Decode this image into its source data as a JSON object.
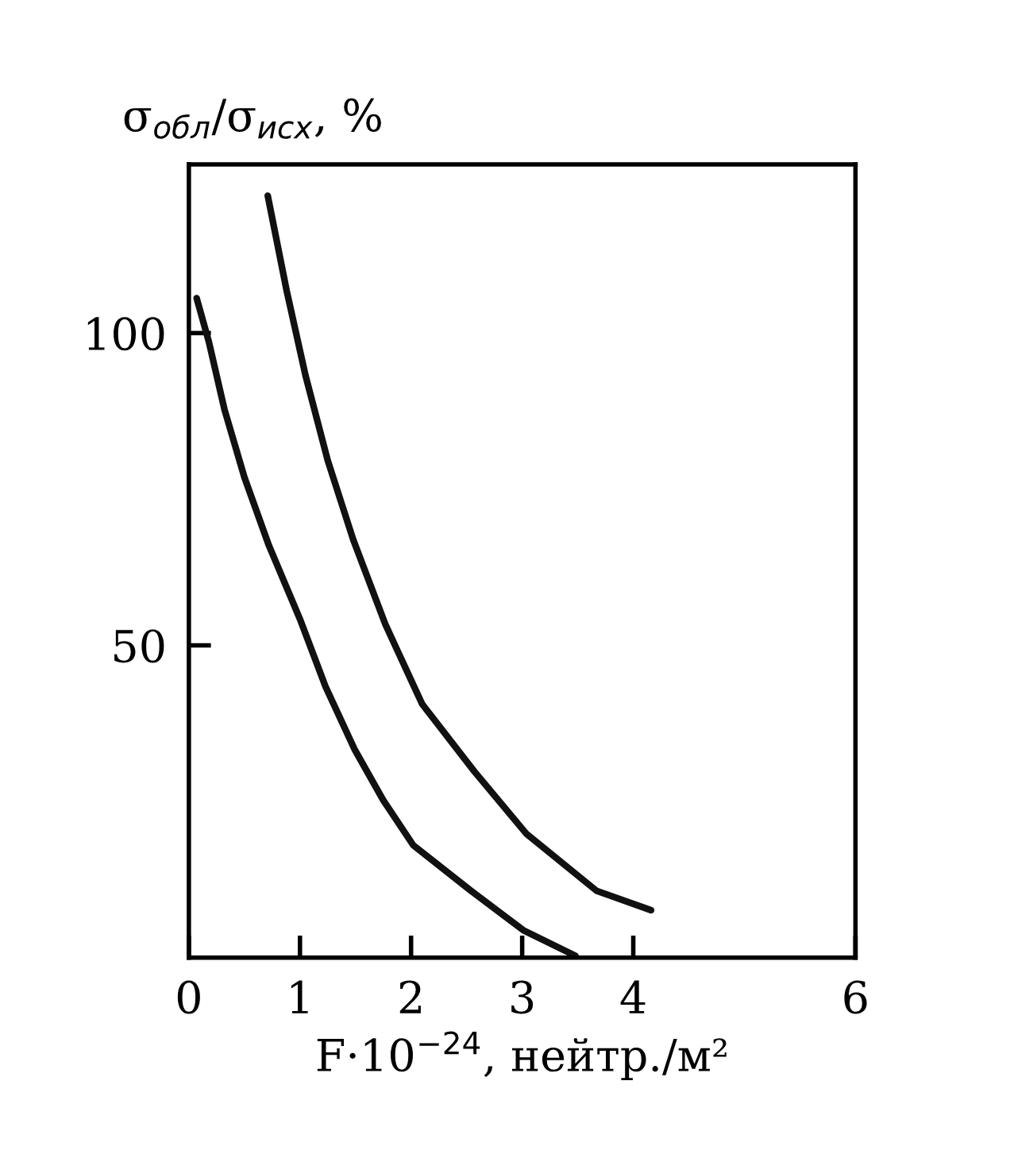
{
  "chart_data": {
    "type": "line",
    "xlabel": "F·10$^{−24}$, нейтр./м²",
    "ylabel": "σ$_{обл}$/σ$_{исх}$, %",
    "xlim": [
      0,
      6
    ],
    "xticks": [
      0,
      1,
      2,
      3,
      4,
      6
    ],
    "ylim": [
      0,
      127
    ],
    "yticks": [
      50,
      100
    ],
    "grid": false,
    "marker": "none",
    "line_style": "solid",
    "series": [
      {
        "color": "#111111",
        "x": [
          0.07,
          0.18,
          0.32,
          0.5,
          0.72,
          1.0,
          1.23,
          1.49,
          1.75,
          2.02,
          2.54,
          3.01,
          3.48
        ],
        "values": [
          105.6,
          98.6,
          87.8,
          76.9,
          66.0,
          54.2,
          43.4,
          33.4,
          25.2,
          18.0,
          10.7,
          4.4,
          0.3
        ]
      },
      {
        "color": "#111111",
        "x": [
          0.71,
          0.88,
          1.05,
          1.25,
          1.48,
          1.77,
          2.1,
          2.57,
          3.04,
          3.67,
          4.16
        ],
        "values": [
          122.0,
          106.8,
          93.2,
          79.6,
          66.9,
          53.3,
          40.6,
          29.8,
          19.8,
          10.7,
          7.6
        ]
      }
    ]
  }
}
